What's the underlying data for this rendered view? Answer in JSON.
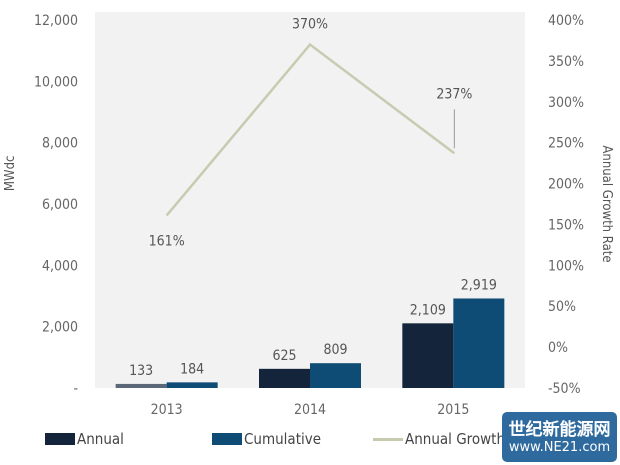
{
  "chart_data": {
    "type": "bar",
    "categories": [
      "2013",
      "2014",
      "2015"
    ],
    "series": [
      {
        "name": "Annual",
        "type": "bar",
        "axis": "left",
        "values": [
          133,
          625,
          2109
        ],
        "labels": [
          "133",
          "625",
          "2,109"
        ],
        "color": "#14243a"
      },
      {
        "name": "Cumulative",
        "type": "bar",
        "axis": "left",
        "values": [
          184,
          809,
          2919
        ],
        "labels": [
          "184",
          "809",
          "2,919"
        ],
        "color": "#0f4c75"
      },
      {
        "name": "Annual Growth Rate",
        "type": "line",
        "axis": "right",
        "values": [
          161,
          370,
          237
        ],
        "labels": [
          "161%",
          "370%",
          "237%"
        ],
        "color": "#c5ccb0"
      }
    ],
    "ylabel": "MWdc",
    "ylim": [
      0,
      12000
    ],
    "yticks": [
      "-",
      "2,000",
      "4,000",
      "6,000",
      "8,000",
      "10,000",
      "12,000"
    ],
    "y2label": "Annual Growth Rate",
    "y2lim": [
      -50,
      400
    ],
    "y2ticks": [
      "-50%",
      "0%",
      "50%",
      "100%",
      "150%",
      "200%",
      "250%",
      "300%",
      "350%",
      "400%"
    ],
    "grid": false,
    "legend": "bottom",
    "plot_background": "#f2f2f2"
  },
  "legend": {
    "annual": "Annual",
    "cumulative": "Cumulative",
    "growth": "Annual Growth Rate"
  },
  "watermark": {
    "line1": "世纪新能源网",
    "line2": "www.NE21.com"
  }
}
